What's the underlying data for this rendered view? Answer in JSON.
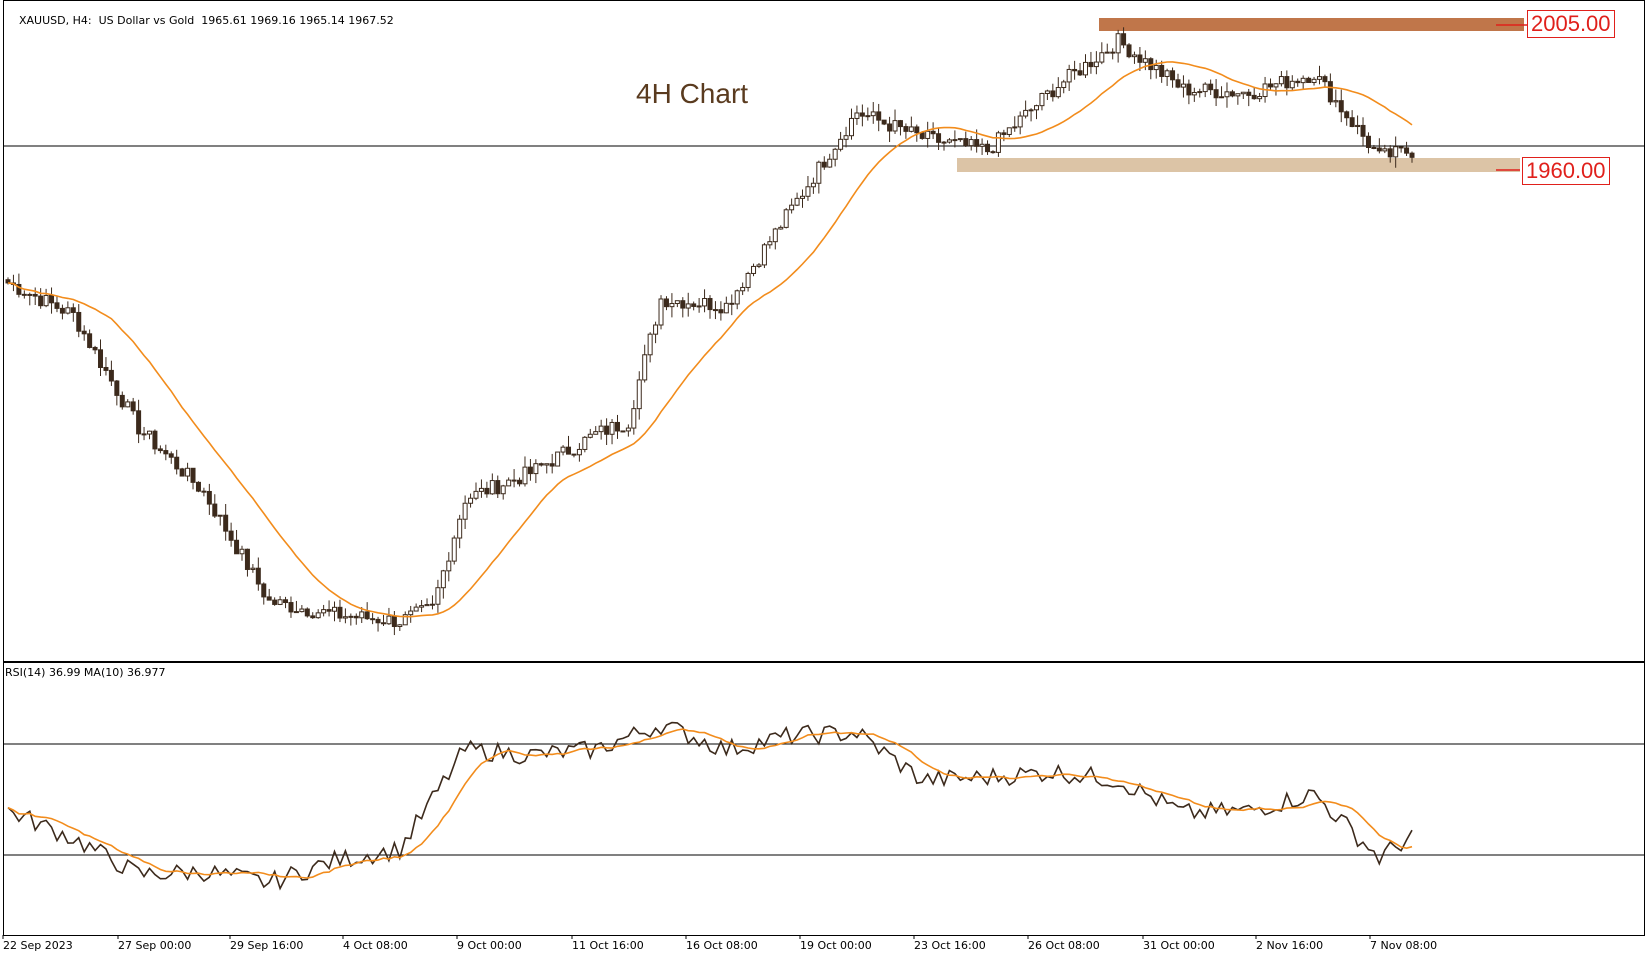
{
  "header": {
    "symbol": "XAUUSD",
    "timeframe": "H4",
    "description": "US Dollar vs Gold",
    "ohlc": "1965.61 1969.16 1965.14 1967.52"
  },
  "annotation": {
    "title": "4H Chart"
  },
  "levels": [
    {
      "value": "2005.00",
      "color": "#e0201b",
      "zone_color": "#c0764a"
    },
    {
      "value": "1960.00",
      "color": "#e0201b",
      "zone_color": "#dcc4a6"
    }
  ],
  "rsi": {
    "label": "RSI(14) 36.99 MA(10) 36.977",
    "upper_level": 70,
    "lower_level": 30
  },
  "colors": {
    "candle": "#3c2a1c",
    "ma_line": "#f28c1c",
    "rsi_line": "#3c2a1c",
    "rsi_ma_line": "#f28c1c"
  },
  "chart_data": {
    "type": "candlestick",
    "x_tick_labels": [
      "22 Sep 2023",
      "27 Sep 00:00",
      "29 Sep 16:00",
      "4 Oct 08:00",
      "9 Oct 00:00",
      "11 Oct 16:00",
      "16 Oct 08:00",
      "19 Oct 00:00",
      "23 Oct 16:00",
      "26 Oct 08:00",
      "31 Oct 00:00",
      "2 Nov 16:00",
      "7 Nov 08:00"
    ],
    "price_anchors": [
      {
        "bar": 0,
        "close": 1925
      },
      {
        "bar": 12,
        "close": 1915
      },
      {
        "bar": 24,
        "close": 1880
      },
      {
        "bar": 36,
        "close": 1860
      },
      {
        "bar": 48,
        "close": 1826
      },
      {
        "bar": 60,
        "close": 1822
      },
      {
        "bar": 72,
        "close": 1820
      },
      {
        "bar": 78,
        "close": 1824
      },
      {
        "bar": 84,
        "close": 1858
      },
      {
        "bar": 96,
        "close": 1866
      },
      {
        "bar": 108,
        "close": 1878
      },
      {
        "bar": 114,
        "close": 1882
      },
      {
        "bar": 120,
        "close": 1920
      },
      {
        "bar": 132,
        "close": 1918
      },
      {
        "bar": 144,
        "close": 1948
      },
      {
        "bar": 156,
        "close": 1978
      },
      {
        "bar": 168,
        "close": 1970
      },
      {
        "bar": 180,
        "close": 1966
      },
      {
        "bar": 192,
        "close": 1985
      },
      {
        "bar": 204,
        "close": 2000
      },
      {
        "bar": 216,
        "close": 1985
      },
      {
        "bar": 228,
        "close": 1984
      },
      {
        "bar": 240,
        "close": 1990
      },
      {
        "bar": 252,
        "close": 1964
      },
      {
        "bar": 258,
        "close": 1966
      }
    ],
    "rsi_anchors": [
      {
        "bar": 0,
        "rsi": 46
      },
      {
        "bar": 12,
        "rsi": 36
      },
      {
        "bar": 24,
        "rsi": 23
      },
      {
        "bar": 36,
        "rsi": 24
      },
      {
        "bar": 48,
        "rsi": 20
      },
      {
        "bar": 60,
        "rsi": 28
      },
      {
        "bar": 72,
        "rsi": 32
      },
      {
        "bar": 84,
        "rsi": 68
      },
      {
        "bar": 96,
        "rsi": 66
      },
      {
        "bar": 108,
        "rsi": 68
      },
      {
        "bar": 120,
        "rsi": 77
      },
      {
        "bar": 132,
        "rsi": 68
      },
      {
        "bar": 144,
        "rsi": 73
      },
      {
        "bar": 156,
        "rsi": 74
      },
      {
        "bar": 168,
        "rsi": 57
      },
      {
        "bar": 180,
        "rsi": 58
      },
      {
        "bar": 192,
        "rsi": 60
      },
      {
        "bar": 204,
        "rsi": 57
      },
      {
        "bar": 216,
        "rsi": 45
      },
      {
        "bar": 228,
        "rsi": 46
      },
      {
        "bar": 240,
        "rsi": 52
      },
      {
        "bar": 252,
        "rsi": 29
      },
      {
        "bar": 258,
        "rsi": 37
      }
    ]
  }
}
